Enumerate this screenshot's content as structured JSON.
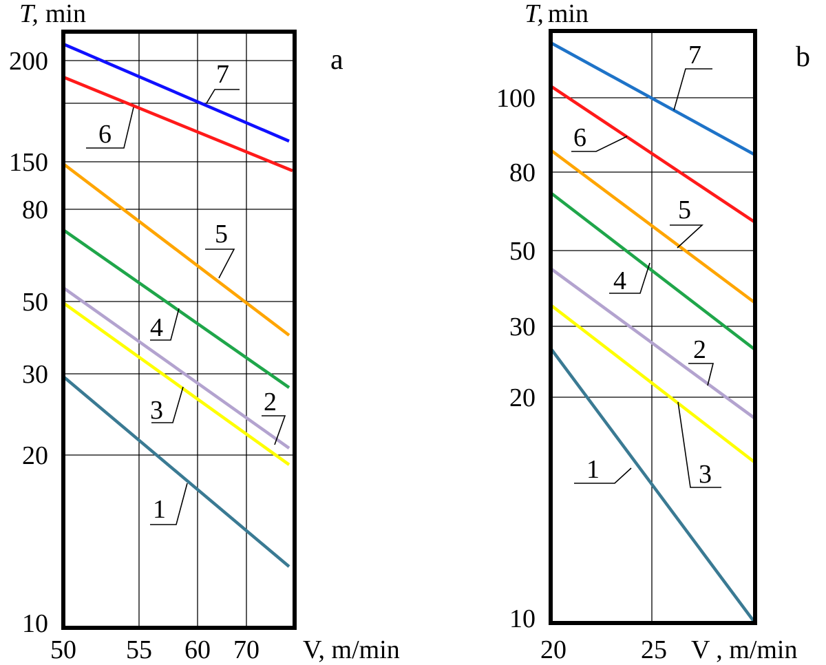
{
  "chart_data": [
    {
      "type": "line",
      "panel_label": "a",
      "xlabel": "V, m/min",
      "ylabel_italic": "T,",
      "ylabel_unit": "min",
      "x_ticks": [
        "50",
        "55",
        "60",
        "70"
      ],
      "y_ticks": [
        "200",
        "150",
        "80",
        "50",
        "30",
        "20",
        "10"
      ],
      "series": [
        {
          "name": "1",
          "color": "#3a7a93",
          "x": [
            "50",
            "75"
          ],
          "y": [
            29.5,
            12.5
          ]
        },
        {
          "name": "2",
          "color": "#b3a3cf",
          "x": [
            "50",
            "75"
          ],
          "y": [
            53,
            21
          ]
        },
        {
          "name": "3",
          "color": "#ffff00",
          "x": [
            "50",
            "75"
          ],
          "y": [
            48,
            19.5
          ]
        },
        {
          "name": "4",
          "color": "#1fa64a",
          "x": [
            "50",
            "75"
          ],
          "y": [
            73,
            27.5
          ]
        },
        {
          "name": "5",
          "color": "#ffa500",
          "x": [
            "50",
            "75"
          ],
          "y": [
            142,
            40
          ]
        },
        {
          "name": "6",
          "color": "#ff1a1a",
          "x": [
            "50",
            "75"
          ],
          "y": [
            186,
            140
          ]
        },
        {
          "name": "7",
          "color": "#1010ff",
          "x": [
            "50",
            "75"
          ],
          "y": [
            211,
            164
          ]
        }
      ]
    },
    {
      "type": "line",
      "panel_label": "b",
      "xlabel": "V , m/min",
      "ylabel_italic": "T,",
      "ylabel_unit": "min",
      "x_ticks": [
        "20",
        "25"
      ],
      "y_ticks": [
        "100",
        "80",
        "50",
        "30",
        "20",
        "10"
      ],
      "series": [
        {
          "name": "1",
          "color": "#3a7a93",
          "x": [
            "20",
            "30"
          ],
          "y": [
            26,
            10
          ]
        },
        {
          "name": "2",
          "color": "#b3a3cf",
          "x": [
            "20",
            "30"
          ],
          "y": [
            46,
            18
          ]
        },
        {
          "name": "3",
          "color": "#ffff00",
          "x": [
            "20",
            "30"
          ],
          "y": [
            34,
            15
          ]
        },
        {
          "name": "4",
          "color": "#1fa64a",
          "x": [
            "20",
            "30"
          ],
          "y": [
            72,
            26
          ]
        },
        {
          "name": "5",
          "color": "#ffa500",
          "x": [
            "20",
            "30"
          ],
          "y": [
            90,
            35
          ]
        },
        {
          "name": "6",
          "color": "#ff1a1a",
          "x": [
            "20",
            "30"
          ],
          "y": [
            104,
            60
          ]
        },
        {
          "name": "7",
          "color": "#1e73c8",
          "x": [
            "20",
            "30"
          ],
          "y": [
            118,
            87
          ]
        }
      ]
    }
  ]
}
